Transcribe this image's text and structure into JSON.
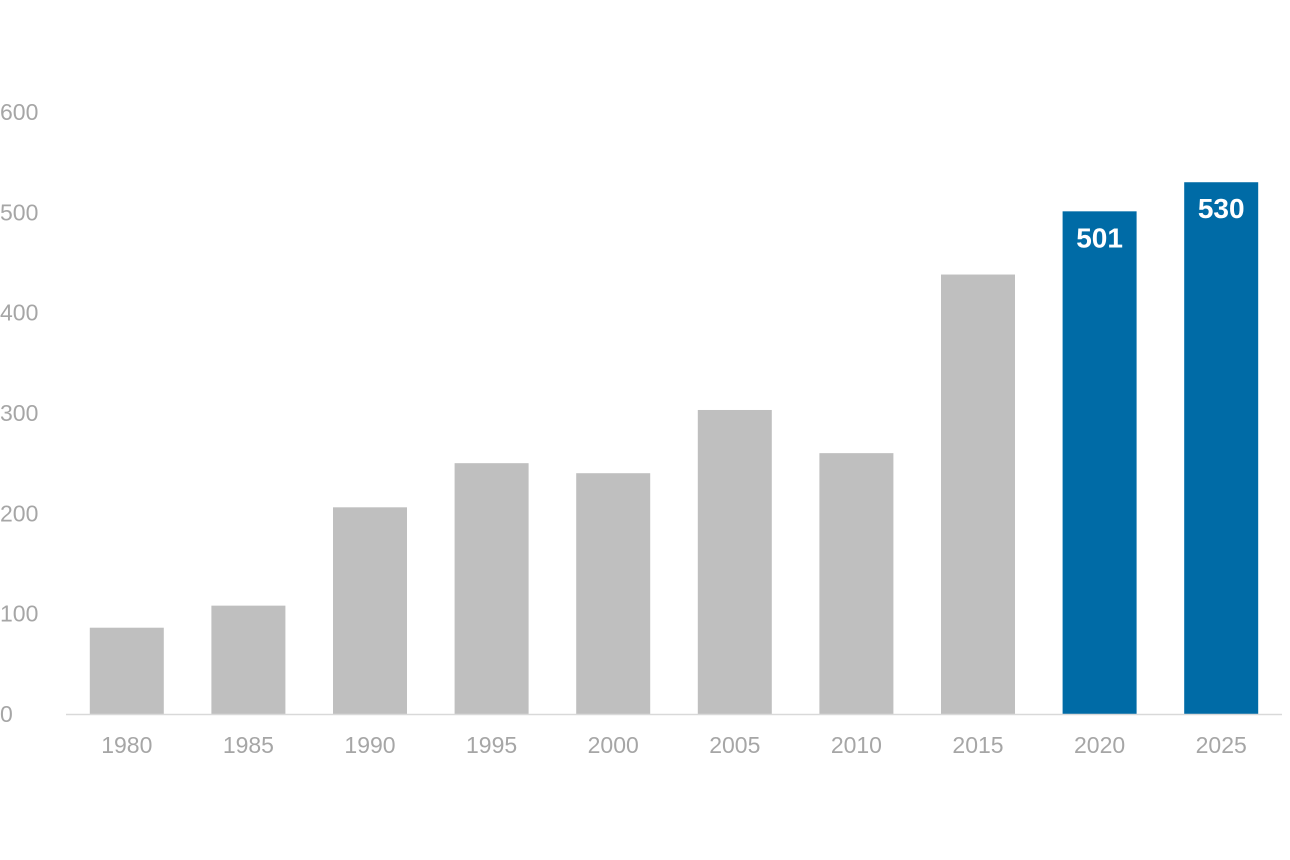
{
  "chart_data": {
    "type": "bar",
    "title": "",
    "xlabel": "",
    "ylabel": "",
    "categories": [
      "1980",
      "1985",
      "1990",
      "1995",
      "2000",
      "2005",
      "2010",
      "2015",
      "2020",
      "2025"
    ],
    "values": [
      86,
      108,
      206,
      250,
      240,
      303,
      260,
      438,
      501,
      530
    ],
    "highlighted": [
      false,
      false,
      false,
      false,
      false,
      false,
      false,
      false,
      true,
      true
    ],
    "data_labels": [
      "",
      "",
      "",
      "",
      "",
      "",
      "",
      "",
      "501",
      "530"
    ],
    "ylim": [
      0,
      600
    ],
    "yticks": [
      "0",
      "100",
      "200",
      "300",
      "400",
      "500",
      "600"
    ],
    "grid": false,
    "legend": "none",
    "colors": {
      "bar": "#bfbfbf",
      "highlight": "#006ba6",
      "axis": "#d9d9d9",
      "tick_text": "#a6a6a6",
      "label_text": "#ffffff"
    }
  }
}
